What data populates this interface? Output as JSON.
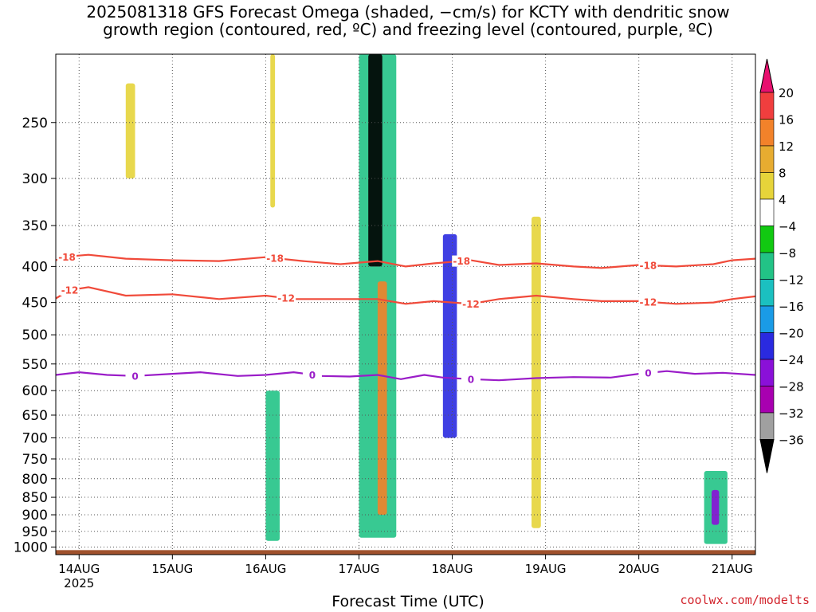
{
  "chart_data": {
    "type": "heatmap",
    "title_line1": "2025081318 GFS Forecast Omega (shaded, −cm/s) for KCTY with dendritic snow",
    "title_line2": "growth region (contoured, red, ºC) and freezing level (contoured, purple, ºC)",
    "xlabel": "Forecast Time (UTC)",
    "ylabel": "",
    "credit": "coolwx.com/modelts",
    "y_axis": {
      "unit": "hPa",
      "scale": "log-pressure",
      "range": [
        200,
        1025
      ],
      "ticks": [
        250,
        300,
        350,
        400,
        450,
        500,
        550,
        600,
        650,
        700,
        750,
        800,
        850,
        900,
        950,
        1000
      ]
    },
    "x_axis": {
      "range": [
        "2025-08-13T18",
        "2025-08-21T06"
      ],
      "ticks": [
        {
          "day": 14,
          "label": "14AUG",
          "sub": "2025"
        },
        {
          "day": 15,
          "label": "15AUG",
          "sub": ""
        },
        {
          "day": 16,
          "label": "16AUG",
          "sub": ""
        },
        {
          "day": 17,
          "label": "17AUG",
          "sub": ""
        },
        {
          "day": 18,
          "label": "18AUG",
          "sub": ""
        },
        {
          "day": 19,
          "label": "19AUG",
          "sub": ""
        },
        {
          "day": 20,
          "label": "20AUG",
          "sub": ""
        },
        {
          "day": 21,
          "label": "21AUG",
          "sub": ""
        }
      ]
    },
    "grid": true,
    "colorbar": {
      "labels": [
        "20",
        "16",
        "12",
        "8",
        "4",
        "−4",
        "−8",
        "−12",
        "−16",
        "−20",
        "−24",
        "−28",
        "−32",
        "−36"
      ],
      "colors": [
        "#e8106f",
        "#f03e3e",
        "#f2822a",
        "#e7ac30",
        "#e6d43a",
        "#ffffff",
        "#11c911",
        "#22c386",
        "#1bc0c0",
        "#1a9be6",
        "#2a2ae0",
        "#8a10d8",
        "#a800b0",
        "#a0a0a0",
        "#000000"
      ]
    },
    "contours": [
      {
        "label": "-18",
        "color": "#f04a3a",
        "label_positions": [
          13.87,
          16.1,
          18.1,
          20.1
        ],
        "points": [
          [
            13.75,
            392
          ],
          [
            13.9,
            387
          ],
          [
            14.1,
            385
          ],
          [
            14.5,
            390
          ],
          [
            15.0,
            392
          ],
          [
            15.5,
            393
          ],
          [
            16.0,
            388
          ],
          [
            16.4,
            393
          ],
          [
            16.8,
            397
          ],
          [
            17.2,
            393
          ],
          [
            17.5,
            400
          ],
          [
            17.8,
            396
          ],
          [
            18.2,
            392
          ],
          [
            18.5,
            398
          ],
          [
            18.9,
            396
          ],
          [
            19.3,
            400
          ],
          [
            19.6,
            402
          ],
          [
            20.0,
            398
          ],
          [
            20.4,
            400
          ],
          [
            20.8,
            397
          ],
          [
            21.0,
            392
          ],
          [
            21.25,
            390
          ]
        ]
      },
      {
        "label": "-12",
        "color": "#f04a3a",
        "label_positions": [
          13.9,
          16.22,
          18.2,
          20.1
        ],
        "points": [
          [
            13.75,
            444
          ],
          [
            13.9,
            432
          ],
          [
            14.1,
            428
          ],
          [
            14.5,
            440
          ],
          [
            15.0,
            438
          ],
          [
            15.5,
            445
          ],
          [
            16.0,
            440
          ],
          [
            16.3,
            445
          ],
          [
            16.8,
            445
          ],
          [
            17.2,
            445
          ],
          [
            17.5,
            452
          ],
          [
            17.8,
            448
          ],
          [
            18.2,
            452
          ],
          [
            18.5,
            445
          ],
          [
            18.9,
            440
          ],
          [
            19.3,
            445
          ],
          [
            19.6,
            448
          ],
          [
            20.0,
            448
          ],
          [
            20.4,
            452
          ],
          [
            20.8,
            450
          ],
          [
            21.0,
            445
          ],
          [
            21.25,
            441
          ]
        ]
      },
      {
        "label": "0",
        "color": "#9a1cc8",
        "label_positions": [
          14.6,
          16.5,
          18.2,
          20.1
        ],
        "points": [
          [
            13.75,
            570
          ],
          [
            14.0,
            565
          ],
          [
            14.3,
            570
          ],
          [
            14.6,
            572
          ],
          [
            15.0,
            568
          ],
          [
            15.3,
            565
          ],
          [
            15.7,
            572
          ],
          [
            16.0,
            570
          ],
          [
            16.3,
            565
          ],
          [
            16.6,
            572
          ],
          [
            16.9,
            573
          ],
          [
            17.2,
            570
          ],
          [
            17.45,
            578
          ],
          [
            17.7,
            570
          ],
          [
            17.9,
            575
          ],
          [
            18.2,
            578
          ],
          [
            18.5,
            580
          ],
          [
            18.9,
            576
          ],
          [
            19.3,
            574
          ],
          [
            19.7,
            575
          ],
          [
            20.0,
            568
          ],
          [
            20.3,
            563
          ],
          [
            20.6,
            568
          ],
          [
            20.9,
            566
          ],
          [
            21.25,
            570
          ]
        ]
      }
    ],
    "shaded_regions": [
      {
        "x": [
          14.5,
          14.6
        ],
        "y": [
          220,
          300
        ],
        "color": "#e6d43a"
      },
      {
        "x": [
          16.05,
          16.1
        ],
        "y": [
          200,
          330
        ],
        "color": "#e6d43a"
      },
      {
        "x": [
          16.0,
          16.15
        ],
        "y": [
          600,
          980
        ],
        "color": "#22c386"
      },
      {
        "x": [
          17.0,
          17.4
        ],
        "y": [
          200,
          970
        ],
        "color": "#22c386"
      },
      {
        "x": [
          17.1,
          17.25
        ],
        "y": [
          200,
          400
        ],
        "color": "#000000"
      },
      {
        "x": [
          17.2,
          17.3
        ],
        "y": [
          420,
          900
        ],
        "color": "#f2822a"
      },
      {
        "x": [
          17.9,
          18.05
        ],
        "y": [
          360,
          700
        ],
        "color": "#2a2ae0"
      },
      {
        "x": [
          18.85,
          18.95
        ],
        "y": [
          340,
          940
        ],
        "color": "#e6d43a"
      },
      {
        "x": [
          20.7,
          20.95
        ],
        "y": [
          780,
          990
        ],
        "color": "#22c386"
      },
      {
        "x": [
          20.78,
          20.86
        ],
        "y": [
          830,
          930
        ],
        "color": "#8a10d8"
      }
    ]
  }
}
